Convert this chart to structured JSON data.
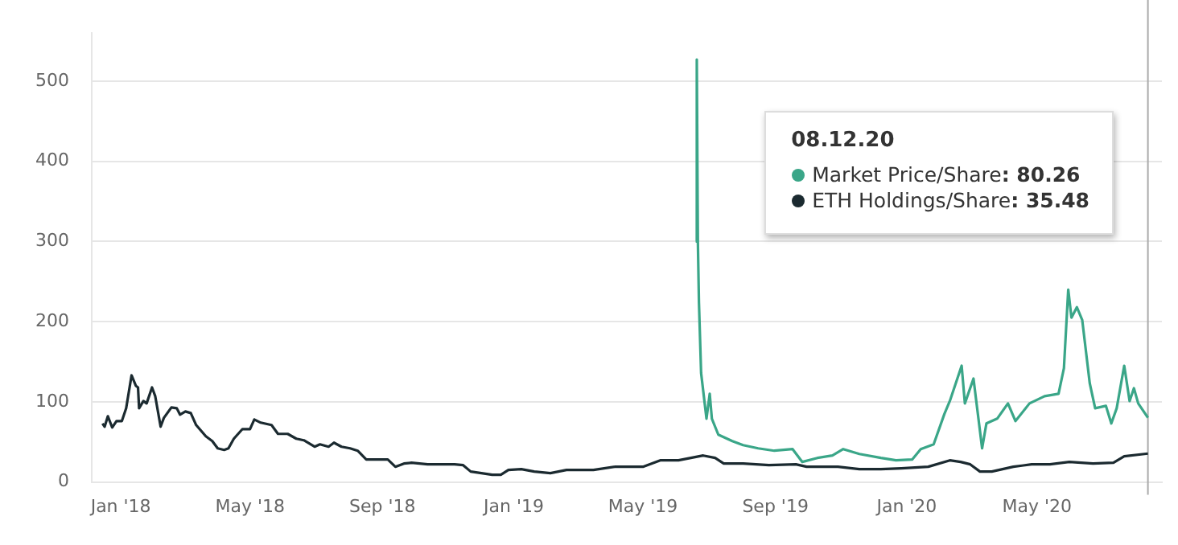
{
  "chart_data": {
    "type": "line",
    "legend_title": "08.12.20",
    "annotations": [
      ": 80.26",
      ": 35.48"
    ],
    "series": [
      {
        "name": "Market Price/Share",
        "color": "#3aa688",
        "x": [
          "2019-06-19",
          "2019-06-20",
          "2019-06-21",
          "2019-06-22",
          "2019-06-24",
          "2019-06-29",
          "2019-07-02",
          "2019-07-04",
          "2019-07-10",
          "2019-07-23",
          "2019-08-02",
          "2019-08-16",
          "2019-08-31",
          "2019-09-17",
          "2019-09-26",
          "2019-10-10",
          "2019-10-24",
          "2019-11-03",
          "2019-11-18",
          "2019-12-08",
          "2019-12-22",
          "2020-01-06",
          "2020-01-14",
          "2020-01-26",
          "2020-02-05",
          "2020-02-10",
          "2020-02-21",
          "2020-02-24",
          "2020-03-03",
          "2020-03-11",
          "2020-03-15",
          "2020-03-25",
          "2020-04-04",
          "2020-04-11",
          "2020-04-24",
          "2020-05-08",
          "2020-05-21",
          "2020-05-26",
          "2020-05-30",
          "2020-06-02",
          "2020-06-07",
          "2020-06-12",
          "2020-06-19",
          "2020-06-24",
          "2020-07-04",
          "2020-07-09",
          "2020-07-14",
          "2020-07-21",
          "2020-07-26",
          "2020-07-30",
          "2020-08-03",
          "2020-08-12"
        ],
        "values": [
          300,
          527,
          300,
          224,
          136,
          79,
          110,
          79,
          59,
          51,
          46,
          42,
          39,
          41,
          25,
          30,
          33,
          41,
          35,
          30,
          27,
          28,
          41,
          47,
          85,
          101,
          145,
          98,
          129,
          42,
          73,
          79,
          98,
          76,
          98,
          107,
          110,
          142,
          240,
          205,
          218,
          202,
          123,
          92,
          95,
          73,
          92,
          145,
          101,
          117,
          98,
          80.26
        ]
      },
      {
        "name": "ETH Holdings/Share",
        "color": "#1b2a30",
        "x": [
          "2017-12-15",
          "2017-12-17",
          "2017-12-20",
          "2017-12-24",
          "2017-12-28",
          "2018-01-02",
          "2018-01-06",
          "2018-01-11",
          "2018-01-15",
          "2018-01-17",
          "2018-01-18",
          "2018-01-22",
          "2018-01-25",
          "2018-01-30",
          "2018-02-02",
          "2018-02-07",
          "2018-02-10",
          "2018-02-17",
          "2018-02-22",
          "2018-02-25",
          "2018-03-02",
          "2018-03-07",
          "2018-03-12",
          "2018-03-21",
          "2018-03-27",
          "2018-04-01",
          "2018-04-07",
          "2018-04-11",
          "2018-04-16",
          "2018-04-24",
          "2018-05-01",
          "2018-05-05",
          "2018-05-11",
          "2018-05-21",
          "2018-05-27",
          "2018-06-05",
          "2018-06-13",
          "2018-06-20",
          "2018-06-30",
          "2018-07-05",
          "2018-07-13",
          "2018-07-18",
          "2018-07-25",
          "2018-08-02",
          "2018-08-09",
          "2018-08-17",
          "2018-08-29",
          "2018-09-06",
          "2018-09-13",
          "2018-09-21",
          "2018-09-28",
          "2018-10-13",
          "2018-11-07",
          "2018-11-15",
          "2018-11-22",
          "2018-12-02",
          "2018-12-12",
          "2018-12-20",
          "2018-12-27",
          "2019-01-08",
          "2019-01-20",
          "2019-02-04",
          "2019-02-19",
          "2019-03-16",
          "2019-04-05",
          "2019-05-01",
          "2019-05-17",
          "2019-06-03",
          "2019-06-26",
          "2019-07-07",
          "2019-07-15",
          "2019-08-02",
          "2019-08-26",
          "2019-09-20",
          "2019-09-30",
          "2019-10-29",
          "2019-11-18",
          "2019-12-08",
          "2019-12-27",
          "2020-01-21",
          "2020-02-10",
          "2020-02-20",
          "2020-02-29",
          "2020-03-09",
          "2020-03-20",
          "2020-04-09",
          "2020-04-26",
          "2020-05-13",
          "2020-05-31",
          "2020-06-22",
          "2020-07-11",
          "2020-07-21",
          "2020-08-12"
        ],
        "values": [
          73,
          69,
          82,
          68,
          76,
          76,
          92,
          133,
          120,
          118,
          92,
          101,
          98,
          118,
          107,
          69,
          80,
          93,
          92,
          84,
          88,
          86,
          71,
          57,
          51,
          42,
          40,
          42,
          54,
          66,
          66,
          78,
          74,
          71,
          60,
          60,
          54,
          52,
          44,
          47,
          44,
          49,
          44,
          42,
          39,
          28,
          28,
          28,
          19,
          23,
          24,
          22,
          22,
          21,
          13,
          11,
          9,
          9,
          15,
          16,
          13,
          11,
          15,
          15,
          19,
          19,
          27,
          27,
          33,
          30,
          23,
          23,
          21,
          22,
          19,
          19,
          16,
          16,
          17,
          19,
          27,
          25,
          22,
          13,
          13,
          19,
          22,
          22,
          25,
          23,
          24,
          32,
          35.48
        ]
      }
    ],
    "xlim": [
      "2017-12-05",
      "2020-08-25"
    ],
    "xticks": [
      {
        "value": "2018-01-01",
        "label": "Jan '18"
      },
      {
        "value": "2018-05-01",
        "label": "May '18"
      },
      {
        "value": "2018-09-01",
        "label": "Sep '18"
      },
      {
        "value": "2019-01-01",
        "label": "Jan '19"
      },
      {
        "value": "2019-05-01",
        "label": "May '19"
      },
      {
        "value": "2019-09-01",
        "label": "Sep '19"
      },
      {
        "value": "2020-01-01",
        "label": "Jan '20"
      },
      {
        "value": "2020-05-01",
        "label": "May '20"
      }
    ],
    "ylim": [
      0,
      560
    ],
    "yticks": [
      0,
      100,
      200,
      300,
      400,
      500
    ],
    "grid": "y",
    "legend": "top right",
    "ref_lines": [
      {
        "axis": "x",
        "value": "2020-08-12",
        "color": "#aaaaaa"
      }
    ],
    "line_style": "solid"
  }
}
